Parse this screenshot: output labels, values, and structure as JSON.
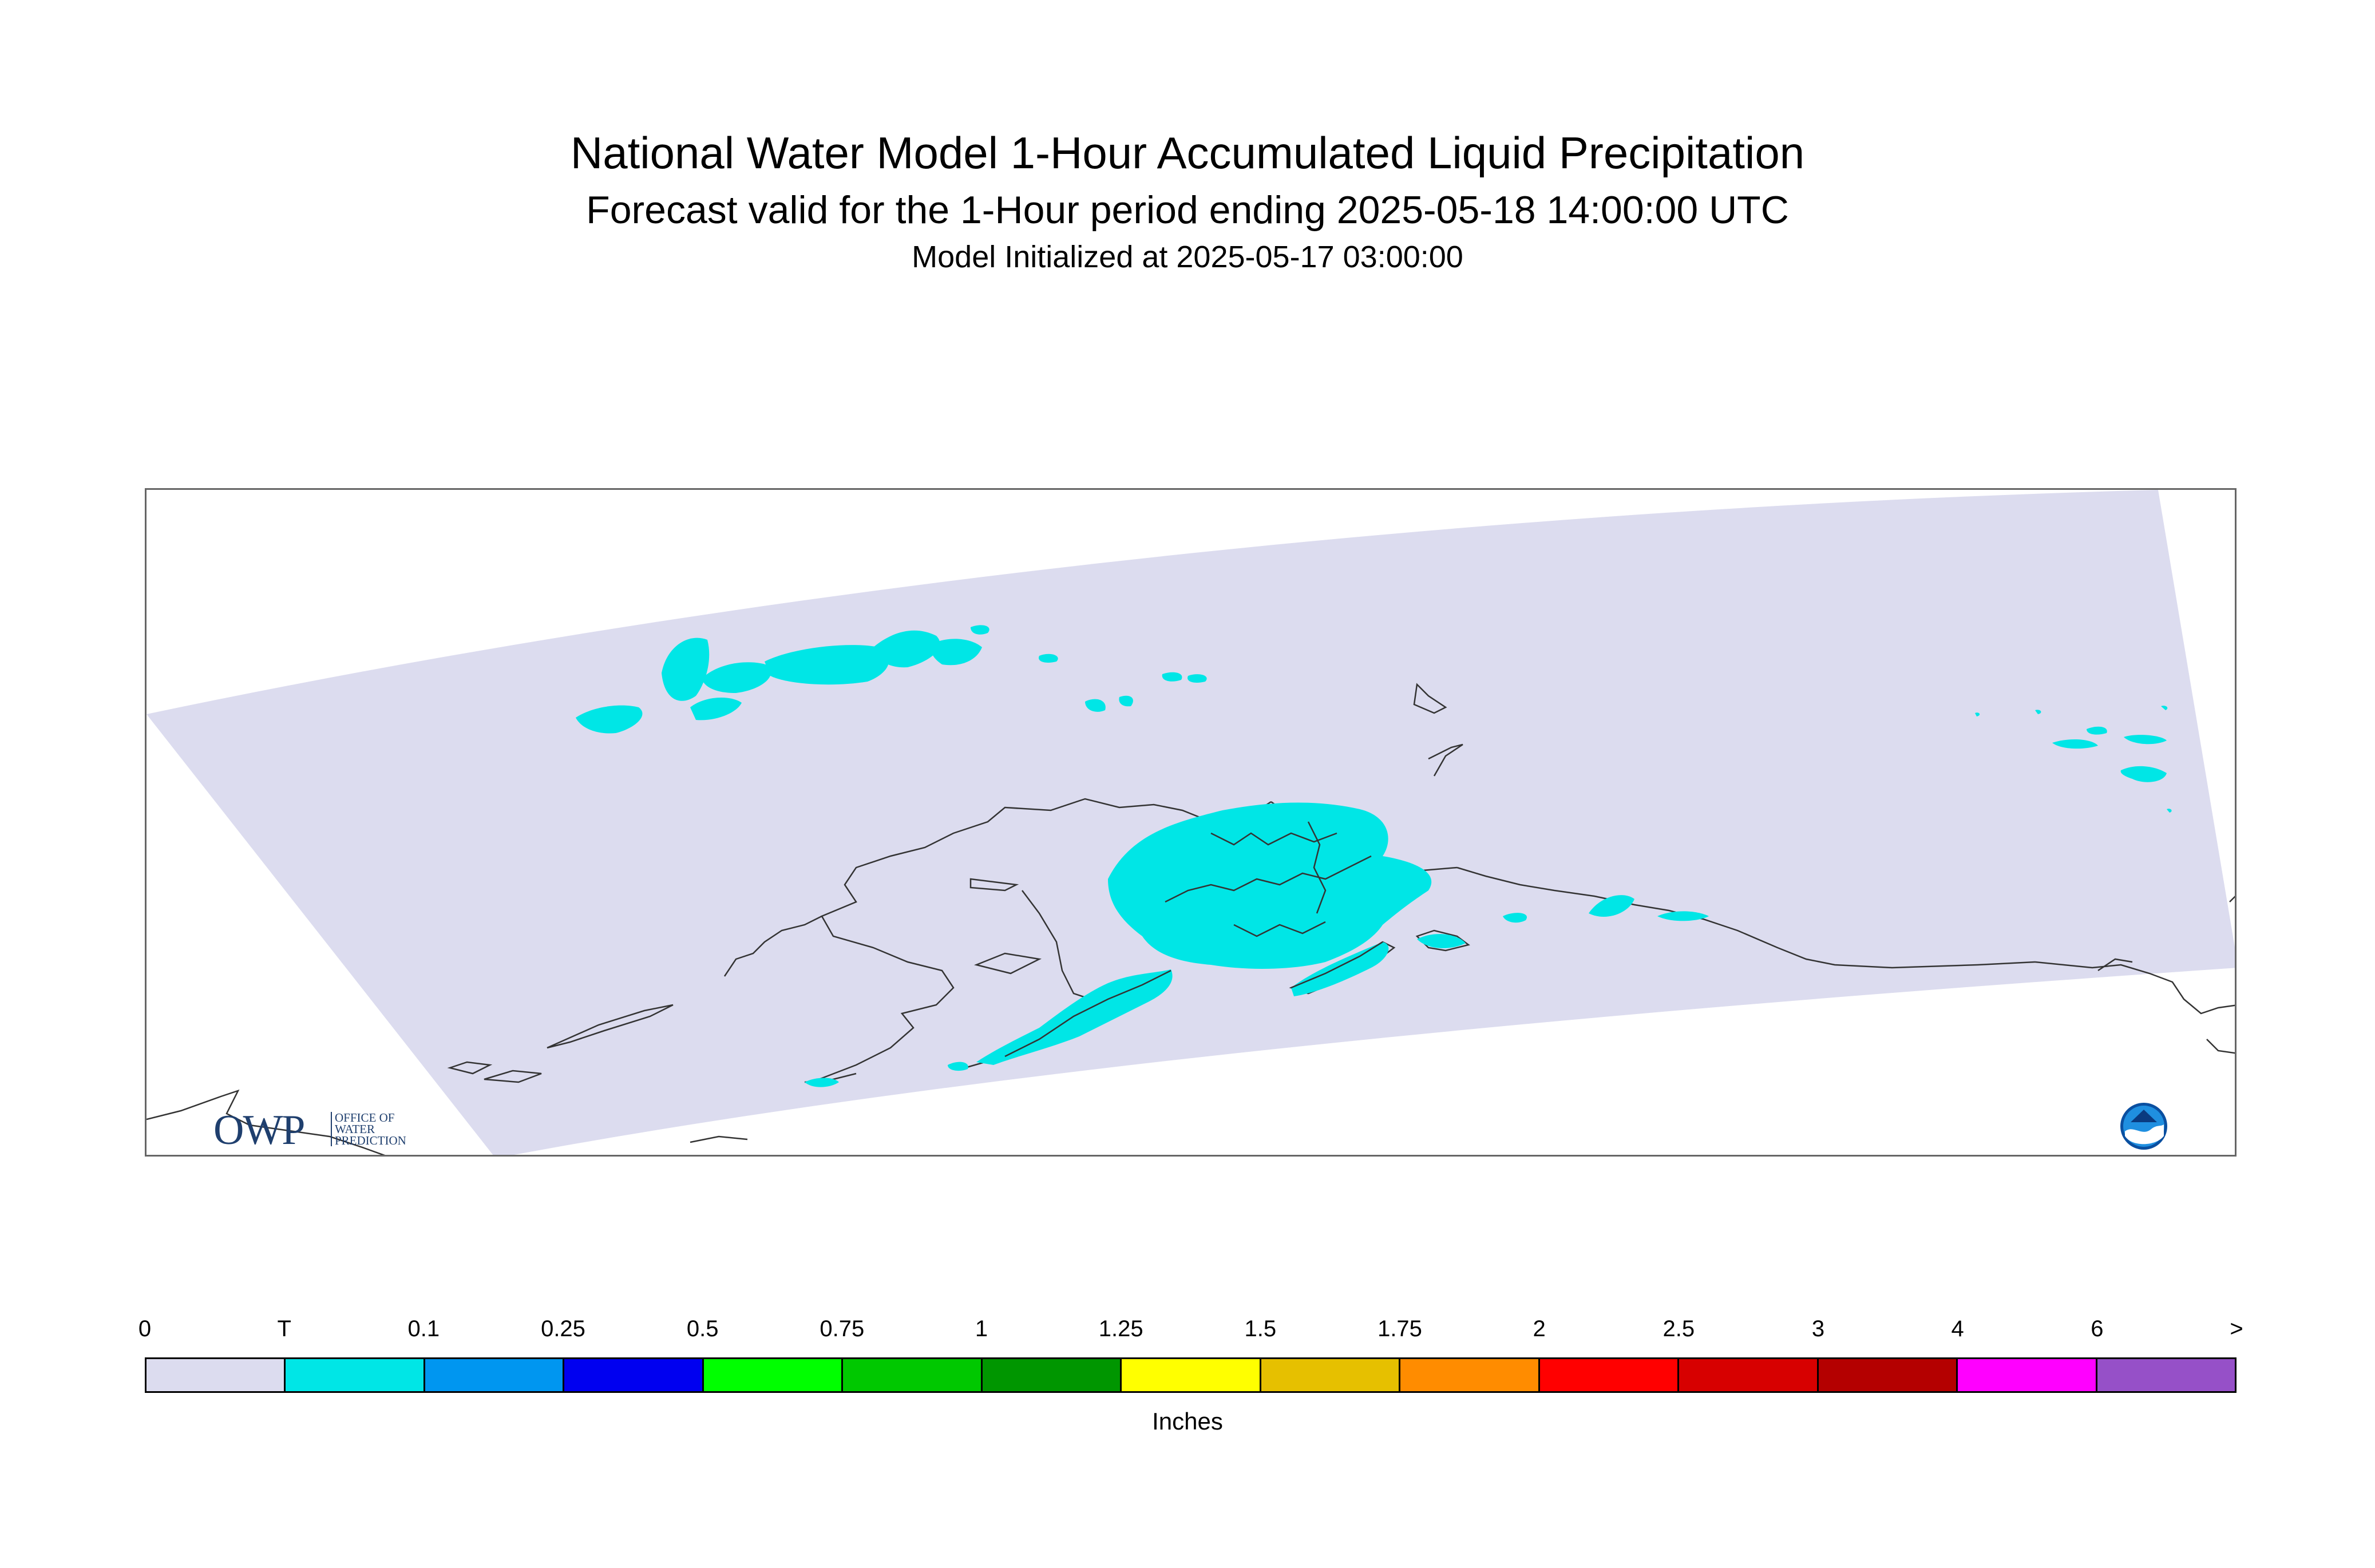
{
  "title": "National Water Model 1-Hour Accumulated Liquid Precipitation",
  "subtitle": "Forecast valid for the 1-Hour period ending 2025-05-18 14:00:00 UTC",
  "init_line": "Model Initialized at 2025-05-17 03:00:00",
  "map": {
    "region": "Alaska",
    "background_color": "#dcdcef",
    "precip_color": "#00e6e6",
    "coastline_color": "#333333"
  },
  "logos": {
    "owp": {
      "letters": "OWP",
      "line1": "OFFICE OF",
      "line2": "WATER",
      "line3": "PREDICTION"
    },
    "noaa": {
      "icon": "noaa-emblem-icon"
    }
  },
  "legend": {
    "tick_labels": [
      "0",
      "T",
      "0.1",
      "0.25",
      "0.5",
      "0.75",
      "1",
      "1.25",
      "1.5",
      "1.75",
      "2",
      "2.5",
      "3",
      "4",
      "6",
      ">"
    ],
    "colors": [
      "#dcdcef",
      "#00e6e6",
      "#0096f0",
      "#0000f0",
      "#00ff00",
      "#00c800",
      "#009600",
      "#ffff00",
      "#e6c000",
      "#ff8c00",
      "#ff0000",
      "#d70000",
      "#b40000",
      "#ff00ff",
      "#9650c8"
    ],
    "units": "Inches"
  }
}
